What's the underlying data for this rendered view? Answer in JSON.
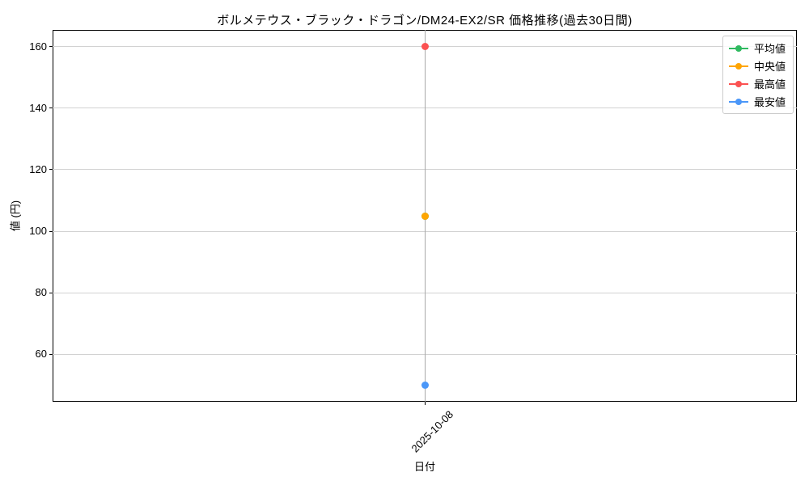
{
  "chart_data": {
    "type": "line",
    "title": "ボルメテウス・ブラック・ドラゴン/DM24-EX2/SR 価格推移(過去30日間)",
    "xlabel": "日付",
    "ylabel": "値 (円)",
    "categories": [
      "2025-10-08"
    ],
    "series": [
      {
        "name": "平均値",
        "color": "#2fba60",
        "values": [
          105
        ]
      },
      {
        "name": "中央値",
        "color": "#ffa502",
        "values": [
          105
        ]
      },
      {
        "name": "最高値",
        "color": "#fb5252",
        "values": [
          160
        ]
      },
      {
        "name": "最安値",
        "color": "#4b97f8",
        "values": [
          50
        ]
      }
    ],
    "ylim": [
      44.5,
      165.5
    ],
    "yticks": [
      60,
      80,
      100,
      120,
      140,
      160
    ],
    "grid": true,
    "legend_position": "upper right",
    "colors": {
      "grid_horizontal": "#d2d2d2",
      "grid_vertical": "#a9a9a9",
      "spine": "#000000",
      "text": "#000000",
      "legend_border": "#cccccc"
    }
  }
}
